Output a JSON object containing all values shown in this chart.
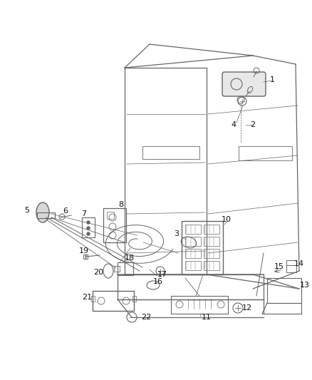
{
  "bg_color": "#ffffff",
  "lc": "#666666",
  "label_color": "#111111",
  "lw": 0.9
}
